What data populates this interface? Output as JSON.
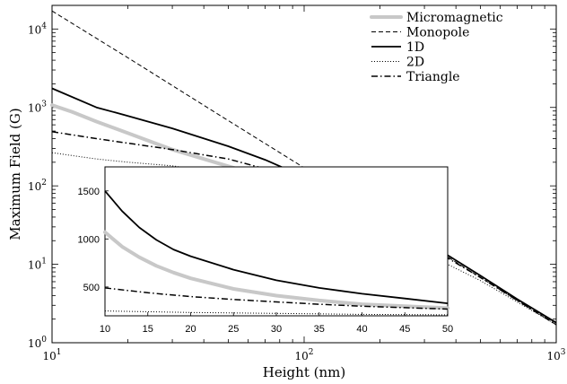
{
  "chart_data": [
    {
      "type": "line",
      "xlabel": "Height (nm)",
      "ylabel": "Maximum Field (G)",
      "xscale": "log",
      "yscale": "log",
      "xlim": [
        10,
        1000
      ],
      "ylim": [
        1,
        20000
      ],
      "xticks": [
        {
          "value": 10,
          "base": "10",
          "exp": "1"
        },
        {
          "value": 100,
          "base": "10",
          "exp": "2"
        },
        {
          "value": 1000,
          "base": "10",
          "exp": "3"
        }
      ],
      "yticks": [
        {
          "value": 1,
          "base": "10",
          "exp": "0"
        },
        {
          "value": 10,
          "base": "10",
          "exp": "1"
        },
        {
          "value": 100,
          "base": "10",
          "exp": "2"
        },
        {
          "value": 1000,
          "base": "10",
          "exp": "3"
        },
        {
          "value": 10000,
          "base": "10",
          "exp": "4"
        }
      ],
      "legend_position": "top-right",
      "series": [
        {
          "name": "Micromagnetic",
          "style": "thick-gray",
          "color": "#c8c8c8",
          "x": [
            10,
            12,
            15,
            20,
            25,
            30,
            40,
            50,
            70,
            100,
            150,
            200,
            300,
            350
          ],
          "y": [
            1070,
            880,
            660,
            470,
            360,
            290,
            220,
            178,
            130,
            85,
            45,
            28,
            15,
            12
          ]
        },
        {
          "name": "Monopole",
          "style": "dashed",
          "color": "#000000",
          "x": [
            10,
            20,
            50,
            100,
            200,
            500,
            1000
          ],
          "y": [
            17000,
            4300,
            680,
            170,
            43,
            6.8,
            1.7
          ]
        },
        {
          "name": "1D",
          "style": "solid",
          "color": "#000000",
          "x": [
            10,
            15,
            20,
            30,
            50,
            70,
            100,
            150,
            200,
            300,
            500,
            700,
            1000
          ],
          "y": [
            1750,
            1000,
            780,
            540,
            320,
            215,
            130,
            68,
            43,
            20,
            7.2,
            3.6,
            1.8
          ]
        },
        {
          "name": "2D",
          "style": "dotted",
          "color": "#000000",
          "x": [
            10,
            15,
            20,
            30,
            50,
            70,
            100,
            150,
            200,
            300,
            500,
            1000
          ],
          "y": [
            265,
            220,
            200,
            180,
            140,
            110,
            80,
            45,
            28,
            14,
            6.2,
            1.7
          ]
        },
        {
          "name": "Triangle",
          "style": "dashdot",
          "color": "#000000",
          "x": [
            10,
            15,
            20,
            30,
            50,
            70,
            100,
            150,
            200,
            300,
            500,
            1000
          ],
          "y": [
            490,
            400,
            350,
            290,
            220,
            165,
            110,
            60,
            38,
            18,
            6.8,
            1.7
          ]
        }
      ]
    },
    {
      "type": "line",
      "inset": true,
      "xlim": [
        10,
        50
      ],
      "ylim": [
        200,
        1750
      ],
      "xticks": [
        10,
        15,
        20,
        25,
        30,
        35,
        40,
        45,
        50
      ],
      "yticks": [
        500,
        1000,
        1500
      ],
      "series": [
        {
          "name": "Micromagnetic",
          "style": "thick-gray",
          "color": "#c8c8c8",
          "x": [
            10,
            12,
            14,
            16,
            18,
            20,
            25,
            30,
            35,
            40,
            45,
            50
          ],
          "y": [
            1070,
            920,
            810,
            720,
            650,
            590,
            480,
            410,
            360,
            320,
            300,
            280
          ]
        },
        {
          "name": "1D",
          "style": "solid",
          "color": "#000000",
          "x": [
            10,
            12,
            14,
            16,
            18,
            20,
            25,
            30,
            35,
            40,
            45,
            50
          ],
          "y": [
            1500,
            1290,
            1120,
            990,
            890,
            820,
            680,
            570,
            490,
            430,
            380,
            330
          ]
        },
        {
          "name": "2D",
          "style": "dotted",
          "color": "#000000",
          "x": [
            10,
            20,
            30,
            40,
            50
          ],
          "y": [
            250,
            235,
            225,
            215,
            210
          ]
        },
        {
          "name": "Triangle",
          "style": "dashdot",
          "color": "#000000",
          "x": [
            10,
            15,
            20,
            25,
            30,
            35,
            40,
            45,
            50
          ],
          "y": [
            490,
            440,
            400,
            370,
            345,
            320,
            300,
            285,
            270
          ]
        }
      ]
    }
  ]
}
